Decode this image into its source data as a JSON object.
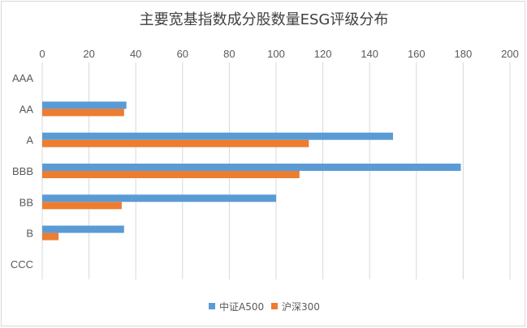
{
  "chart_data": {
    "type": "bar",
    "orientation": "horizontal",
    "title": "主要宽基指数成分股数量ESG评级分布",
    "categories": [
      "AAA",
      "AA",
      "A",
      "BBB",
      "BB",
      "B",
      "CCC"
    ],
    "series": [
      {
        "name": "中证A500",
        "color": "#5B9BD5",
        "values": [
          0,
          36,
          150,
          179,
          100,
          35,
          0
        ]
      },
      {
        "name": "沪深300",
        "color": "#ED7D31",
        "values": [
          0,
          35,
          114,
          110,
          34,
          7,
          0
        ]
      }
    ],
    "xlim": [
      0,
      200
    ],
    "xticks": [
      "0",
      "20",
      "40",
      "60",
      "80",
      "100",
      "120",
      "140",
      "160",
      "180",
      "200"
    ],
    "x_axis_position": "top",
    "grid": true,
    "legend_position": "bottom"
  }
}
